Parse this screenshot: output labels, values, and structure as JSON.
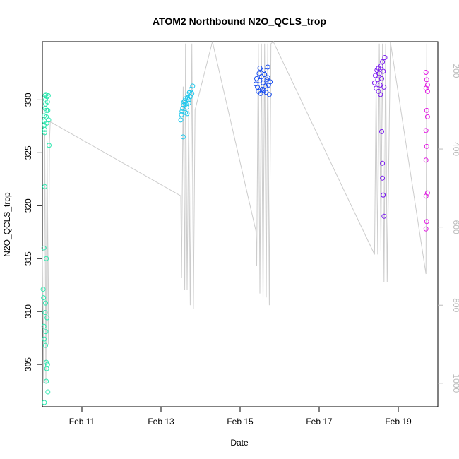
{
  "chart_data": {
    "type": "scatter",
    "title": "ATOM2 Northbound N2O_QCLS_trop",
    "xlabel": "Date",
    "ylabel": "N2O_QCLS_trop",
    "x_ticks": [
      "Feb 11",
      "Feb 13",
      "Feb 15",
      "Feb 17",
      "Feb 19"
    ],
    "y_ticks": [
      "305",
      "310",
      "315",
      "320",
      "325",
      "330"
    ],
    "y2_ticks": [
      "200",
      "400",
      "600",
      "800",
      "1000"
    ],
    "x_range_days": [
      10.0,
      20.0
    ],
    "ylim": [
      301,
      335.5
    ],
    "y2lim": [
      125,
      1060
    ],
    "y2_reversed": true,
    "background_series_color": "#cccccc",
    "series": [
      {
        "color": "#2ee8b0",
        "points": [
          [
            "Feb 10.05",
            328.5
          ],
          [
            "Feb 10.05",
            328.0
          ],
          [
            "Feb 10.05",
            327.6
          ],
          [
            "Feb 10.06",
            327.2
          ],
          [
            "Feb 10.06",
            326.9
          ],
          [
            "Feb 10.07",
            329.2
          ],
          [
            "Feb 10.07",
            330.4
          ],
          [
            "Feb 10.08",
            330.0
          ],
          [
            "Feb 10.08",
            329.6
          ],
          [
            "Feb 10.09",
            330.5
          ],
          [
            "Feb 10.10",
            329.0
          ],
          [
            "Feb 10.10",
            328.4
          ],
          [
            "Feb 10.11",
            327.8
          ],
          [
            "Feb 10.12",
            330.3
          ],
          [
            "Feb 10.13",
            329.8
          ],
          [
            "Feb 10.14",
            329.0
          ],
          [
            "Feb 10.15",
            330.4
          ],
          [
            "Feb 10.16",
            328.1
          ],
          [
            "Feb 10.17",
            325.7
          ],
          [
            "Feb 10.06",
            321.8
          ],
          [
            "Feb 10.04",
            316.0
          ],
          [
            "Feb 10.10",
            315.0
          ],
          [
            "Feb 10.02",
            312.1
          ],
          [
            "Feb 10.03",
            311.3
          ],
          [
            "Feb 10.08",
            310.8
          ],
          [
            "Feb 10.07",
            309.9
          ],
          [
            "Feb 10.12",
            309.4
          ],
          [
            "Feb 10.04",
            308.6
          ],
          [
            "Feb 10.09",
            308.1
          ],
          [
            "Feb 10.05",
            307.4
          ],
          [
            "Feb 10.08",
            306.8
          ],
          [
            "Feb 10.10",
            305.2
          ],
          [
            "Feb 10.13",
            305.0
          ],
          [
            "Feb 10.11",
            304.6
          ],
          [
            "Feb 10.10",
            303.4
          ],
          [
            "Feb 10.14",
            302.4
          ],
          [
            "Feb 10.05",
            301.4
          ]
        ]
      },
      {
        "color": "#20c8ec",
        "points": [
          [
            "Feb 13.50",
            328.1
          ],
          [
            "Feb 13.52",
            328.6
          ],
          [
            "Feb 13.53",
            328.9
          ],
          [
            "Feb 13.55",
            329.2
          ],
          [
            "Feb 13.57",
            329.5
          ],
          [
            "Feb 13.58",
            329.8
          ],
          [
            "Feb 13.60",
            329.9
          ],
          [
            "Feb 13.62",
            330.1
          ],
          [
            "Feb 13.63",
            329.6
          ],
          [
            "Feb 13.65",
            329.3
          ],
          [
            "Feb 13.67",
            330.2
          ],
          [
            "Feb 13.68",
            330.5
          ],
          [
            "Feb 13.70",
            330.0
          ],
          [
            "Feb 13.72",
            330.7
          ],
          [
            "Feb 13.74",
            330.3
          ],
          [
            "Feb 13.76",
            331.0
          ],
          [
            "Feb 13.78",
            330.6
          ],
          [
            "Feb 13.80",
            331.3
          ],
          [
            "Feb 13.62",
            328.8
          ],
          [
            "Feb 13.56",
            326.5
          ],
          [
            "Feb 13.70",
            329.7
          ],
          [
            "Feb 13.66",
            328.7
          ]
        ]
      },
      {
        "color": "#1a4ff0",
        "points": [
          [
            "Feb 15.40",
            331.5
          ],
          [
            "Feb 15.42",
            332.0
          ],
          [
            "Feb 15.44",
            331.2
          ],
          [
            "Feb 15.46",
            330.8
          ],
          [
            "Feb 15.48",
            332.5
          ],
          [
            "Feb 15.50",
            331.8
          ],
          [
            "Feb 15.52",
            330.6
          ],
          [
            "Feb 15.54",
            332.2
          ],
          [
            "Feb 15.56",
            331.0
          ],
          [
            "Feb 15.58",
            331.6
          ],
          [
            "Feb 15.60",
            330.9
          ],
          [
            "Feb 15.62",
            332.4
          ],
          [
            "Feb 15.64",
            331.3
          ],
          [
            "Feb 15.66",
            330.7
          ],
          [
            "Feb 15.68",
            331.9
          ],
          [
            "Feb 15.70",
            332.1
          ],
          [
            "Feb 15.72",
            331.4
          ],
          [
            "Feb 15.74",
            330.5
          ],
          [
            "Feb 15.76",
            331.7
          ],
          [
            "Feb 15.50",
            333.0
          ],
          [
            "Feb 15.60",
            332.8
          ],
          [
            "Feb 15.70",
            333.1
          ]
        ]
      },
      {
        "color": "#7a1af0",
        "points": [
          [
            "Feb 18.40",
            331.6
          ],
          [
            "Feb 18.42",
            332.3
          ],
          [
            "Feb 18.44",
            331.1
          ],
          [
            "Feb 18.46",
            332.8
          ],
          [
            "Feb 18.48",
            331.9
          ],
          [
            "Feb 18.50",
            330.8
          ],
          [
            "Feb 18.52",
            332.5
          ],
          [
            "Feb 18.54",
            331.4
          ],
          [
            "Feb 18.56",
            333.2
          ],
          [
            "Feb 18.58",
            332.0
          ],
          [
            "Feb 18.60",
            333.6
          ],
          [
            "Feb 18.62",
            332.7
          ],
          [
            "Feb 18.64",
            331.2
          ],
          [
            "Feb 18.66",
            334.0
          ],
          [
            "Feb 18.58",
            327.0
          ],
          [
            "Feb 18.60",
            324.0
          ],
          [
            "Feb 18.60",
            322.6
          ],
          [
            "Feb 18.62",
            321.0
          ],
          [
            "Feb 18.64",
            319.0
          ],
          [
            "Feb 18.62",
            321.0
          ],
          [
            "Feb 18.55",
            330.5
          ],
          [
            "Feb 18.50",
            333.0
          ]
        ]
      },
      {
        "color": "#e31ae3",
        "points": [
          [
            "Feb 19.70",
            332.6
          ],
          [
            "Feb 19.72",
            331.9
          ],
          [
            "Feb 19.74",
            331.4
          ],
          [
            "Feb 19.70",
            331.1
          ],
          [
            "Feb 19.72",
            329.0
          ],
          [
            "Feb 19.74",
            328.4
          ],
          [
            "Feb 19.70",
            327.1
          ],
          [
            "Feb 19.72",
            325.6
          ],
          [
            "Feb 19.70",
            324.3
          ],
          [
            "Feb 19.74",
            321.2
          ],
          [
            "Feb 19.70",
            320.9
          ],
          [
            "Feb 19.72",
            318.5
          ],
          [
            "Feb 19.70",
            317.8
          ],
          [
            "Feb 19.74",
            330.8
          ]
        ]
      }
    ],
    "background_profile": [
      [
        10.0,
        660
      ],
      [
        10.03,
        1000
      ],
      [
        10.06,
        360
      ],
      [
        10.09,
        1000
      ],
      [
        10.12,
        380
      ],
      [
        10.15,
        900
      ],
      [
        10.18,
        380
      ],
      [
        10.2,
        330
      ],
      [
        13.5,
        520
      ],
      [
        13.52,
        730
      ],
      [
        13.56,
        240
      ],
      [
        13.6,
        760
      ],
      [
        13.62,
        130
      ],
      [
        13.66,
        760
      ],
      [
        13.7,
        300
      ],
      [
        13.74,
        800
      ],
      [
        13.78,
        130
      ],
      [
        13.82,
        810
      ],
      [
        13.86,
        300
      ],
      [
        14.3,
        120
      ],
      [
        15.4,
        610
      ],
      [
        15.42,
        700
      ],
      [
        15.46,
        130
      ],
      [
        15.5,
        770
      ],
      [
        15.54,
        130
      ],
      [
        15.58,
        790
      ],
      [
        15.62,
        130
      ],
      [
        15.66,
        780
      ],
      [
        15.7,
        130
      ],
      [
        15.74,
        800
      ],
      [
        15.78,
        130
      ],
      [
        15.84,
        120
      ],
      [
        18.4,
        670
      ],
      [
        18.44,
        230
      ],
      [
        18.48,
        670
      ],
      [
        18.52,
        130
      ],
      [
        18.56,
        660
      ],
      [
        18.6,
        130
      ],
      [
        18.64,
        740
      ],
      [
        18.68,
        130
      ],
      [
        18.72,
        740
      ],
      [
        18.8,
        120
      ],
      [
        19.7,
        720
      ],
      [
        19.72,
        130
      ]
    ]
  }
}
